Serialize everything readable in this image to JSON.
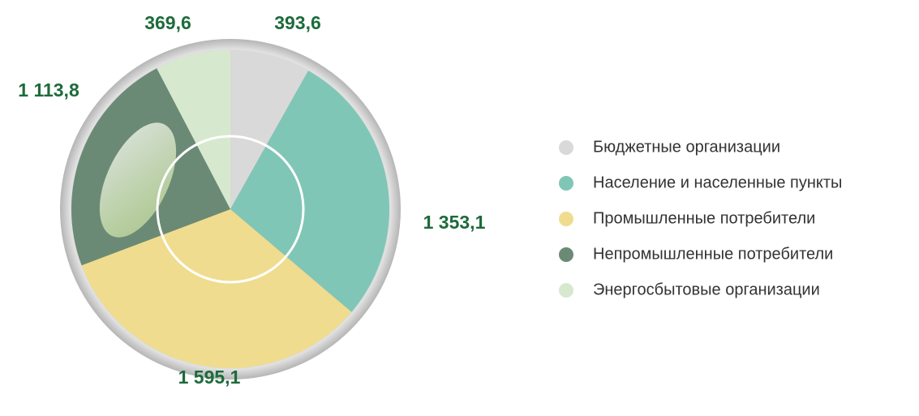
{
  "chart_data": {
    "type": "pie",
    "categories": [
      "Бюджетные организации",
      "Население и населенные пункты",
      "Промышленные потребители",
      "Непромышленные потребители",
      "Энергосбытовые организации"
    ],
    "values": [
      393.6,
      1353.1,
      1595.1,
      1113.8,
      369.6
    ],
    "value_labels": [
      "393,6",
      "1 353,1",
      "1 595,1",
      "1 113,8",
      "369,6"
    ],
    "colors": [
      "#d9d9d9",
      "#80c6b6",
      "#f0dc8e",
      "#6b8a75",
      "#d6e9cf"
    ],
    "legend": "right"
  }
}
